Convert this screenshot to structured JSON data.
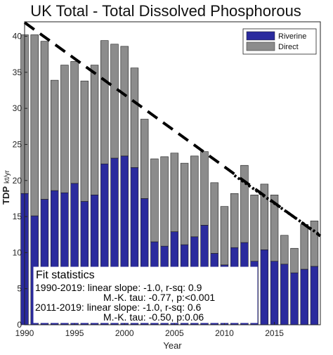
{
  "chart_data": {
    "type": "bar",
    "stacked": true,
    "title": "UK Total - Total Dissolved Phosphorous",
    "xlabel": "Year",
    "ylabel_main": "TDP",
    "ylabel_unit": "kt/yr",
    "xlim": [
      1990,
      2019.6
    ],
    "ylim": [
      0,
      42
    ],
    "x_ticks": [
      1990,
      1995,
      2000,
      2005,
      2010,
      2015
    ],
    "y_ticks": [
      0,
      5,
      10,
      15,
      20,
      25,
      30,
      35,
      40
    ],
    "grid": false,
    "legend_position": "top-right",
    "x": [
      1990,
      1991,
      1992,
      1993,
      1994,
      1995,
      1996,
      1997,
      1998,
      1999,
      2000,
      2001,
      2002,
      2003,
      2004,
      2005,
      2006,
      2007,
      2008,
      2009,
      2010,
      2011,
      2012,
      2013,
      2014,
      2015,
      2016,
      2017,
      2018,
      2019
    ],
    "series": [
      {
        "name": "Riverine",
        "color": "#2b2b9e",
        "values": [
          18.2,
          15.1,
          17.4,
          18.6,
          18.3,
          19.6,
          17.1,
          18.0,
          22.3,
          23.1,
          23.4,
          21.8,
          17.5,
          11.5,
          10.9,
          12.9,
          11.1,
          12.2,
          13.8,
          9.9,
          8.3,
          10.7,
          11.4,
          8.8,
          10.4,
          8.8,
          8.4,
          7.2,
          7.7,
          8.1
        ]
      },
      {
        "name": "Direct",
        "color": "#8c8c8c",
        "values": [
          22.0,
          25.1,
          21.9,
          15.3,
          17.7,
          16.9,
          16.7,
          18.0,
          17.1,
          15.8,
          15.2,
          13.8,
          11.0,
          11.5,
          12.4,
          10.9,
          11.3,
          11.2,
          10.2,
          9.8,
          8.1,
          7.5,
          10.7,
          9.2,
          9.1,
          9.2,
          4.0,
          3.4,
          6.2,
          6.3
        ]
      }
    ],
    "trend_lines": [
      {
        "style": "dashed",
        "from": [
          1990,
          41.9
        ],
        "to": [
          2019.6,
          12.3
        ]
      },
      {
        "style": "dotted",
        "from": [
          2011,
          20.7
        ],
        "to": [
          2019.6,
          12.4
        ]
      }
    ],
    "annotation": {
      "heading": "Fit statistics",
      "lines": [
        "1990-2019: linear slope: -1.0, r-sq: 0.9",
        "M.-K. tau: -0.77, p:<0.001",
        "2011-2019: linear slope: -1.0, r-sq: 0.6",
        "M.-K. tau: -0.50, p:0.06"
      ]
    }
  }
}
